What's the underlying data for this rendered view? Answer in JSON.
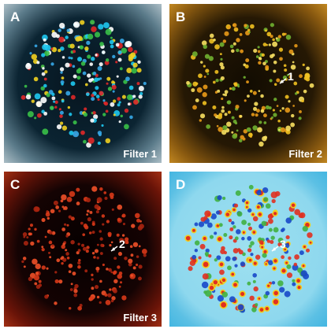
{
  "panels": [
    {
      "letter": "A",
      "caption": "Filter 1"
    },
    {
      "letter": "B",
      "caption": "Filter 2",
      "marker": "1"
    },
    {
      "letter": "C",
      "caption": "Filter 3",
      "marker": "2"
    },
    {
      "letter": "D",
      "marker": "3"
    }
  ]
}
